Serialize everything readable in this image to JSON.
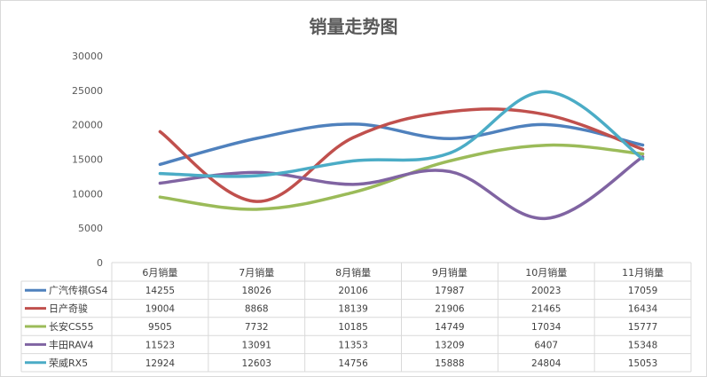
{
  "chart_data": {
    "type": "line",
    "title": "销量走势图",
    "categories": [
      "6月销量",
      "7月销量",
      "8月销量",
      "9月销量",
      "10月销量",
      "11月销量"
    ],
    "ylim": [
      0,
      30000
    ],
    "yticks": [
      "0",
      "5000",
      "10000",
      "15000",
      "20000",
      "25000",
      "30000"
    ],
    "grid": false,
    "legend": "data-table-left",
    "series": [
      {
        "name": "广汽传祺GS4",
        "color": "#4f81bd",
        "values": [
          14255,
          18026,
          20106,
          17987,
          20023,
          17059
        ]
      },
      {
        "name": "日产奇骏",
        "color": "#c0504d",
        "values": [
          19004,
          8868,
          18139,
          21906,
          21465,
          16434
        ]
      },
      {
        "name": "长安CS55",
        "color": "#9bbb59",
        "values": [
          9505,
          7732,
          10185,
          14749,
          17034,
          15777
        ]
      },
      {
        "name": "丰田RAV4",
        "color": "#8064a2",
        "values": [
          11523,
          13091,
          11353,
          13209,
          6407,
          15348
        ]
      },
      {
        "name": "荣威RX5",
        "color": "#4bacc6",
        "values": [
          12924,
          12603,
          14756,
          15888,
          24804,
          15053
        ]
      }
    ]
  }
}
